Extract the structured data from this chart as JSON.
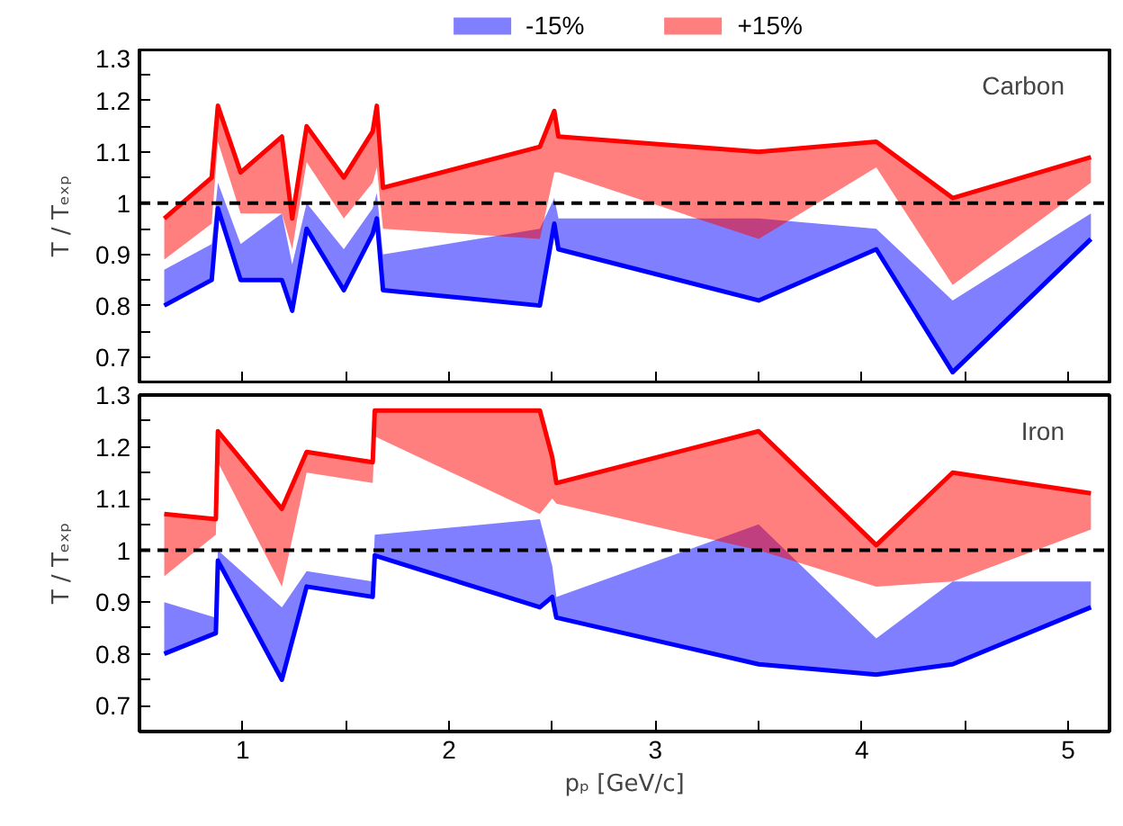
{
  "chart_data": [
    {
      "type": "line",
      "ylabel": "T / Tₑₓₚ",
      "xlim": [
        0.5,
        5.2
      ],
      "ylim": [
        0.65,
        1.3
      ],
      "xticks": [
        {
          "value": 1,
          "label": null
        },
        {
          "value": 1.5,
          "label": null
        },
        {
          "value": 2,
          "label": null
        },
        {
          "value": 2.5,
          "label": null
        },
        {
          "value": 3,
          "label": null
        },
        {
          "value": 3.5,
          "label": null
        },
        {
          "value": 4,
          "label": null
        },
        {
          "value": 4.5,
          "label": null
        },
        {
          "value": 5,
          "label": null
        }
      ],
      "yticks": [
        0.7,
        {
          "value": 0.75,
          "label": null
        },
        0.8,
        {
          "value": 0.85,
          "label": null
        },
        0.9,
        {
          "value": 0.95,
          "label": null
        },
        1,
        {
          "value": 1.05,
          "label": null
        },
        1.1,
        {
          "value": 1.15,
          "label": null
        },
        1.2,
        {
          "value": 1.25,
          "label": null
        },
        1.3
      ],
      "tick_labels": "y",
      "legend": "top",
      "line_style": "solid",
      "marker": "none",
      "ref_lines": [
        {
          "axis": "y",
          "value": 1,
          "color": "#000000",
          "line_style": "dashed"
        }
      ],
      "annotations": [
        "Carbon"
      ],
      "series": [
        {
          "name": "-15%",
          "color": "#0000ff",
          "x": [
            0.62,
            0.85,
            0.88,
            0.99,
            1.19,
            1.24,
            1.31,
            1.49,
            1.63,
            1.65,
            1.68,
            2.44,
            2.51,
            2.53,
            3.5,
            4.07,
            4.44,
            5.11
          ],
          "values": [
            0.8,
            0.85,
            0.99,
            0.85,
            0.85,
            0.79,
            0.95,
            0.83,
            0.94,
            0.97,
            0.83,
            0.8,
            0.96,
            0.91,
            0.81,
            0.91,
            0.67,
            0.93
          ],
          "lower": [
            0.8,
            0.85,
            0.99,
            0.85,
            0.85,
            0.79,
            0.95,
            0.83,
            0.94,
            0.97,
            0.83,
            0.8,
            0.96,
            0.91,
            0.81,
            0.91,
            0.67,
            0.93
          ],
          "upper": [
            0.87,
            0.92,
            1.04,
            0.92,
            0.98,
            0.88,
            1.0,
            0.91,
            0.99,
            1.02,
            0.9,
            0.95,
            1.01,
            0.97,
            0.97,
            0.95,
            0.81,
            0.98
          ]
        },
        {
          "name": "+15%",
          "color": "#ff0000",
          "x": [
            0.62,
            0.85,
            0.88,
            0.99,
            1.19,
            1.24,
            1.31,
            1.49,
            1.63,
            1.65,
            1.68,
            2.44,
            2.51,
            2.53,
            3.5,
            4.07,
            4.44,
            5.11
          ],
          "values": [
            0.97,
            1.05,
            1.19,
            1.06,
            1.13,
            0.97,
            1.15,
            1.05,
            1.14,
            1.19,
            1.03,
            1.11,
            1.18,
            1.13,
            1.1,
            1.12,
            1.01,
            1.09
          ],
          "lower": [
            0.89,
            0.96,
            1.12,
            0.98,
            0.98,
            0.91,
            1.08,
            0.97,
            1.04,
            1.07,
            0.95,
            0.93,
            1.06,
            1.06,
            0.93,
            1.07,
            0.84,
            1.04
          ],
          "upper": [
            0.97,
            1.05,
            1.19,
            1.06,
            1.13,
            0.97,
            1.15,
            1.05,
            1.14,
            1.19,
            1.03,
            1.11,
            1.18,
            1.13,
            1.1,
            1.12,
            1.01,
            1.09
          ]
        }
      ]
    },
    {
      "type": "line",
      "xlabel": "pₚ [GeV/c]",
      "ylabel": "T / Tₑₓₚ",
      "xlim": [
        0.5,
        5.2
      ],
      "ylim": [
        0.65,
        1.3
      ],
      "xticks": [
        1,
        {
          "value": 1.5,
          "label": null
        },
        2,
        {
          "value": 2.5,
          "label": null
        },
        3,
        {
          "value": 3.5,
          "label": null
        },
        4,
        {
          "value": 4.5,
          "label": null
        },
        5
      ],
      "yticks": [
        0.7,
        {
          "value": 0.75,
          "label": null
        },
        0.8,
        {
          "value": 0.85,
          "label": null
        },
        0.9,
        {
          "value": 0.95,
          "label": null
        },
        1,
        {
          "value": 1.05,
          "label": null
        },
        1.1,
        {
          "value": 1.15,
          "label": null
        },
        1.2,
        {
          "value": 1.25,
          "label": null
        },
        1.3
      ],
      "line_style": "solid",
      "marker": "none",
      "ref_lines": [
        {
          "axis": "y",
          "value": 1,
          "color": "#000000",
          "line_style": "dashed"
        }
      ],
      "annotations": [
        "Iron"
      ],
      "series": [
        {
          "color": "#0000ff",
          "x": [
            0.62,
            0.87,
            0.88,
            1.19,
            1.31,
            1.63,
            1.64,
            2.44,
            2.5,
            2.52,
            3.5,
            4.07,
            4.44,
            5.11
          ],
          "values": [
            0.8,
            0.84,
            0.98,
            0.75,
            0.93,
            0.91,
            0.99,
            0.89,
            0.91,
            0.87,
            0.78,
            0.76,
            0.78,
            0.89
          ],
          "lower": [
            0.8,
            0.84,
            0.98,
            0.75,
            0.93,
            0.91,
            0.99,
            0.89,
            0.91,
            0.87,
            0.78,
            0.76,
            0.78,
            0.89
          ],
          "upper": [
            0.9,
            0.87,
            1.0,
            0.89,
            0.96,
            0.94,
            1.03,
            1.06,
            0.97,
            0.91,
            1.05,
            0.83,
            0.94,
            0.94
          ]
        },
        {
          "color": "#ff0000",
          "x": [
            0.62,
            0.87,
            0.88,
            1.19,
            1.31,
            1.63,
            1.64,
            2.44,
            2.5,
            2.52,
            3.5,
            4.07,
            4.44,
            5.11
          ],
          "values": [
            1.07,
            1.06,
            1.23,
            1.08,
            1.19,
            1.17,
            1.27,
            1.27,
            1.18,
            1.13,
            1.23,
            1.01,
            1.15,
            1.11
          ],
          "lower": [
            0.95,
            1.03,
            1.17,
            0.93,
            1.15,
            1.13,
            1.22,
            1.07,
            1.1,
            1.09,
            1.0,
            0.93,
            0.94,
            1.04
          ],
          "upper": [
            1.07,
            1.06,
            1.23,
            1.08,
            1.19,
            1.17,
            1.27,
            1.27,
            1.18,
            1.13,
            1.23,
            1.01,
            1.15,
            1.11
          ]
        }
      ]
    }
  ]
}
